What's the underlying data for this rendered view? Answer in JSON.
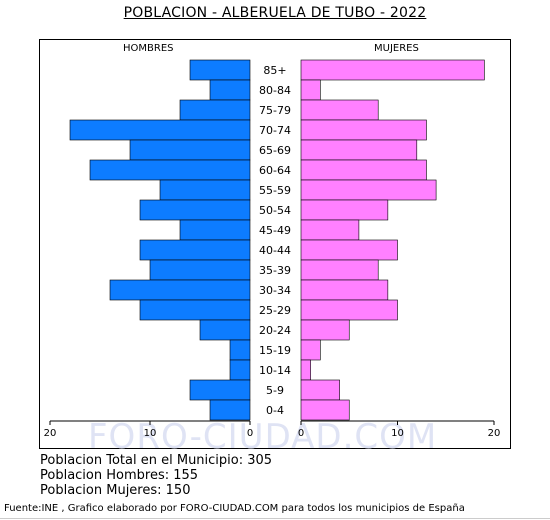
{
  "title": "POBLACION - ALBERUELA DE TUBO - 2022",
  "watermark": "FORO-CIUDAD.COM",
  "stats": {
    "total": "Poblacion Total en el Municipio: 305",
    "men": "Poblacion Hombres: 155",
    "women": "Poblacion Mujeres: 150"
  },
  "source": "Fuente:INE , Grafico elaborado por FORO-CIUDAD.COM para todos los municipios de España",
  "colors": {
    "men": "#0d7cff",
    "women": "#ff80ff",
    "bar_border": "#000000"
  },
  "chart_data": {
    "type": "bar",
    "orientation": "horizontal",
    "series": [
      {
        "name": "HOMBRES",
        "values": [
          6,
          4,
          7,
          18,
          12,
          16,
          9,
          11,
          7,
          11,
          10,
          14,
          11,
          5,
          2,
          2,
          6,
          4
        ]
      },
      {
        "name": "MUJERES",
        "values": [
          19,
          2,
          8,
          13,
          12,
          13,
          14,
          9,
          6,
          10,
          8,
          9,
          10,
          5,
          2,
          1,
          4,
          5
        ]
      }
    ],
    "categories": [
      "85+",
      "80-84",
      "75-79",
      "70-74",
      "65-69",
      "60-64",
      "55-59",
      "50-54",
      "45-49",
      "40-44",
      "35-39",
      "30-34",
      "25-29",
      "20-24",
      "15-19",
      "10-14",
      "5-9",
      "0-4"
    ],
    "xlim": [
      0,
      20
    ],
    "xticks_left": [
      "20",
      "10",
      "0"
    ],
    "xticks_right": [
      "0",
      "10",
      "20"
    ]
  }
}
